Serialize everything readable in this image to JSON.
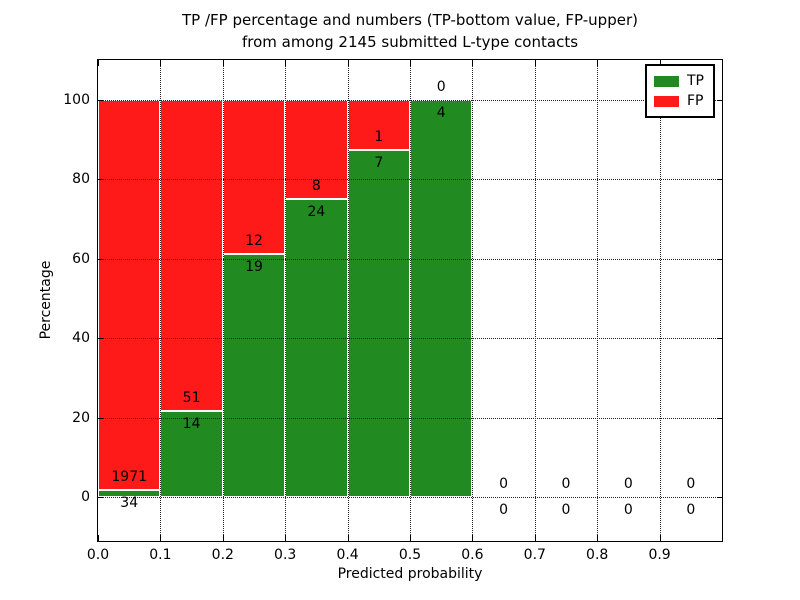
{
  "figure": {
    "title_line1": "TP /FP percentage and numbers (TP-bottom value, FP-upper)",
    "title_line2": "from among 2145 submitted L-type contacts"
  },
  "chart_data": {
    "type": "bar",
    "stacked": true,
    "title": "TP /FP percentage and numbers (TP-bottom value, FP-upper)\nfrom among 2145 submitted L-type contacts",
    "xlabel": "Predicted probability",
    "ylabel": "Percentage",
    "total_submitted": 2145,
    "bin_width": 0.1,
    "bin_starts": [
      0.0,
      0.1,
      0.2,
      0.3,
      0.4,
      0.5,
      0.6,
      0.7,
      0.8,
      0.9
    ],
    "x_tick_labels": [
      "0.0",
      "0.1",
      "0.2",
      "0.3",
      "0.4",
      "0.5",
      "0.6",
      "0.7",
      "0.8",
      "0.9"
    ],
    "y_ticks": [
      0,
      20,
      40,
      60,
      80,
      100
    ],
    "xlim": [
      0,
      1.0
    ],
    "ylim": [
      -11,
      110
    ],
    "grid_style": "dotted",
    "legend_position": "upper-right",
    "series": [
      {
        "name": "TP",
        "color": "#218a21",
        "counts": [
          34,
          14,
          19,
          24,
          7,
          4,
          0,
          0,
          0,
          0
        ],
        "percents": [
          1.7,
          21.54,
          61.29,
          75,
          87.5,
          100,
          0,
          0,
          0,
          0
        ]
      },
      {
        "name": "FP",
        "color": "#ff1a1a",
        "counts": [
          1971,
          51,
          12,
          8,
          1,
          0,
          0,
          0,
          0,
          0
        ],
        "percents": [
          98.3,
          78.46,
          38.71,
          25,
          12.5,
          0,
          0,
          0,
          0,
          0
        ]
      }
    ],
    "legend": {
      "entries": [
        {
          "label": "TP",
          "color": "#218a21"
        },
        {
          "label": "FP",
          "color": "#ff1a1a"
        }
      ]
    }
  }
}
